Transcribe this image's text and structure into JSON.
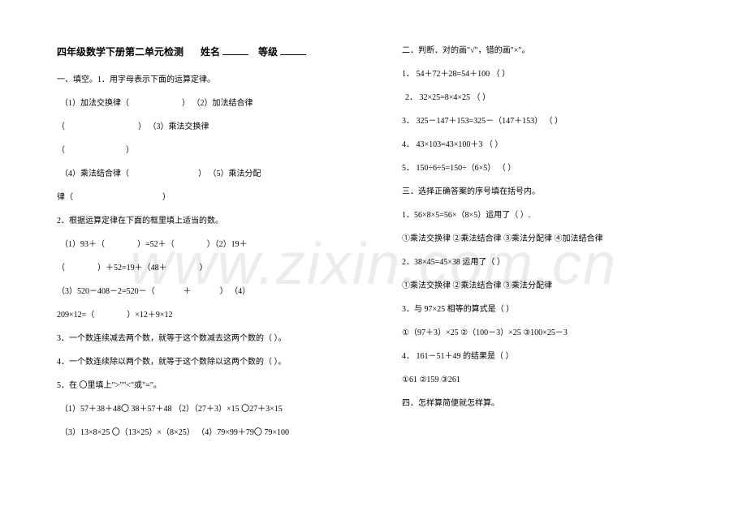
{
  "watermark": "www.zixin.com.cn",
  "left": {
    "title_a": "四年级数学下册第二单元检测",
    "title_b": "姓名",
    "title_c": "等级",
    "s1_heading": "一、填空。1．用字母表示下面的运算定律。",
    "s1_l1a": "（1）加法交换律（",
    "s1_l1b": "）   （2）加法结合律",
    "s1_l2a": "（",
    "s1_l2b": "）  （3）乘法交换律",
    "s1_l3a": "（",
    "s1_l3b": "）",
    "s1_l4a": "（4）乘法结合律（",
    "s1_l4b": "）    （5）乘法分配",
    "s1_l5a": "律（",
    "s1_l5b": "）",
    "s2_heading": "2．根据运算定律在下面的框里填上适当的数。",
    "s2_l1a": "（1）93＋（",
    "s2_l1b": "）=52＋（",
    "s2_l1c": "）（2）19＋",
    "s2_l2a": "（",
    "s2_l2b": "）＋52=19＋（48＋",
    "s2_l2c": "）",
    "s2_l3a": "（3）520－408－2=520－（",
    "s2_l3b": "＋",
    "s2_l3c": "）  （4）",
    "s2_l4a": "209×12=（",
    "s2_l4b": "）×12＋9×12",
    "s3": "3．一个数连续减去两个数，就等于这个数减去这两个数的（          ）。",
    "s4": "4．一个数连续除以两个数，就等于这个数除以这两个数的（          ）。",
    "s5_heading": "5．在 〇里填上\">\"\"<\"或\"=\"。",
    "s5_l1": "（1）57＋38＋48〇 38＋57＋48            （2）（27＋3）×15 〇27＋3×15",
    "s5_l2": "（3）13×8×25 〇（13×25）×（8×25）      （4）79×99＋79〇 79×100"
  },
  "right": {
    "s2_heading": "二．判断．对的画\"√\"，错的画\"×\"。",
    "j1": "1． 54＋72＋28=54＋100                          （          ）",
    "j2": "2． 32×25=8×4×25                              （          ）",
    "j3": "3． 325－147＋153=325－（147＋153）             （          ）",
    "j4": "4． 43×103=43×100＋3                           （          ）",
    "j5": "5． 150÷6÷5=150÷（6×5）                      （          ）",
    "s3_heading": "三．选择正确答案的序号填在括号内。",
    "c1": "1．56×8×5=56×（8×5）运用了（     ）.",
    "c1_opts": "①乘法交换律     ②乘法结合律     ③乘法分配律     ④加法结合律",
    "c2": "2．38×45=45×38 运用了（         ）",
    "c2_opts": "①乘法交换律     ②乘法结合律     ③乘法分配律",
    "c3": "3．与 97×25 相等的算式是（         ）",
    "c3_opts": "①（97＋3）×25 ②（100－3）×25     ③100×25－3",
    "c4": "4． 161－51＋49 的结果是（         ）",
    "c4_opts": "①61             ②159             ③261",
    "s4_heading": "四．怎样算简便就怎样算。"
  }
}
